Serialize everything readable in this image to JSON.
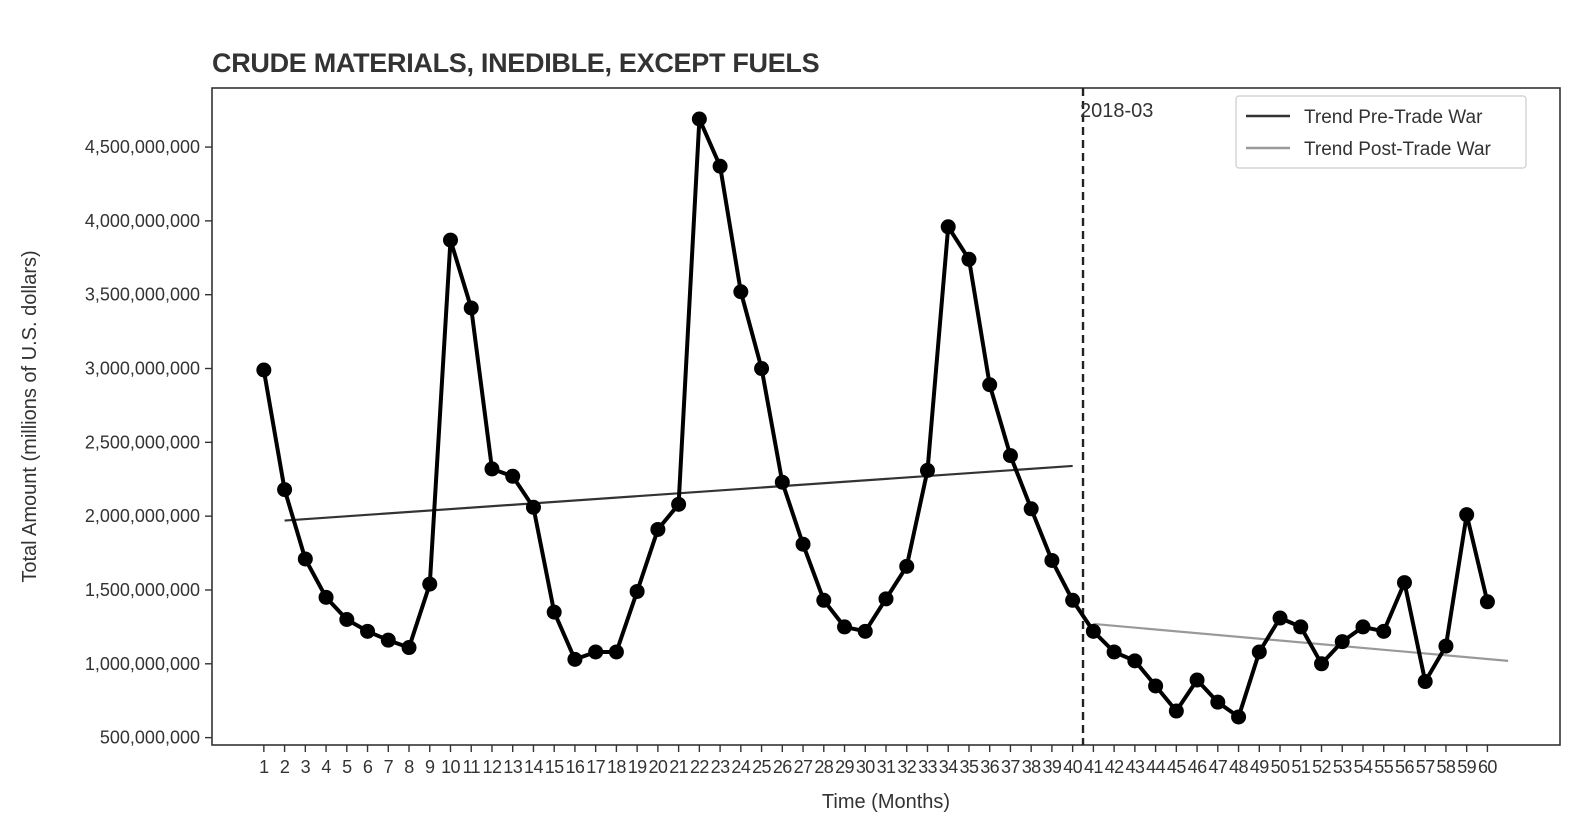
{
  "chart_data": {
    "type": "line",
    "title": "CRUDE MATERIALS, INEDIBLE, EXCEPT FUELS",
    "xlabel": "Time (Months)",
    "ylabel": "Total Amount (millions of U.S. dollars)",
    "xlim": [
      -1.5,
      63.5
    ],
    "ylim": [
      450000000,
      4900000000
    ],
    "yticks": [
      500000000,
      1000000000,
      1500000000,
      2000000000,
      2500000000,
      3000000000,
      3500000000,
      4000000000,
      4500000000
    ],
    "ytick_labels": [
      "500,000,000",
      "1,000,000,000",
      "1,500,000,000",
      "2,000,000,000",
      "2,500,000,000",
      "3,000,000,000",
      "3,500,000,000",
      "4,000,000,000",
      "4,500,000,000"
    ],
    "x": [
      1,
      2,
      3,
      4,
      5,
      6,
      7,
      8,
      9,
      10,
      11,
      12,
      13,
      14,
      15,
      16,
      17,
      18,
      19,
      20,
      21,
      22,
      23,
      24,
      25,
      26,
      27,
      28,
      29,
      30,
      31,
      32,
      33,
      34,
      35,
      36,
      37,
      38,
      39,
      40,
      41,
      42,
      43,
      44,
      45,
      46,
      47,
      48,
      49,
      50,
      51,
      52,
      53,
      54,
      55,
      56,
      57,
      58,
      59,
      60
    ],
    "xtick_labels": [
      "1",
      "2",
      "3",
      "4",
      "5",
      "6",
      "7",
      "8",
      "9",
      "10",
      "11",
      "12",
      "13",
      "14",
      "15",
      "16",
      "17",
      "18",
      "19",
      "20",
      "21",
      "22",
      "23",
      "24",
      "25",
      "26",
      "27",
      "28",
      "29",
      "30",
      "31",
      "32",
      "33",
      "34",
      "35",
      "36",
      "37",
      "38",
      "39",
      "40",
      "41",
      "42",
      "43",
      "44",
      "45",
      "46",
      "47",
      "48",
      "49",
      "50",
      "51",
      "52",
      "53",
      "54",
      "55",
      "56",
      "57",
      "58",
      "59",
      "60"
    ],
    "series": [
      {
        "color": "#000000",
        "values": [
          2990000000,
          2180000000,
          1710000000,
          1450000000,
          1300000000,
          1220000000,
          1160000000,
          1110000000,
          1540000000,
          3870000000,
          3410000000,
          2320000000,
          2270000000,
          2060000000,
          1350000000,
          1030000000,
          1080000000,
          1080000000,
          1490000000,
          1910000000,
          2080000000,
          4690000000,
          4370000000,
          3520000000,
          3000000000,
          2230000000,
          1810000000,
          1430000000,
          1250000000,
          1220000000,
          1440000000,
          1660000000,
          2310000000,
          3960000000,
          3740000000,
          2890000000,
          2410000000,
          2050000000,
          1700000000,
          1430000000,
          1220000000,
          1080000000,
          1020000000,
          850000000,
          680000000,
          890000000,
          740000000,
          640000000,
          1080000000,
          1310000000,
          1250000000,
          1000000000,
          1150000000,
          1250000000,
          1220000000,
          1550000000,
          880000000,
          1120000000,
          2010000000,
          1420000000
        ]
      }
    ],
    "trend_lines": [
      {
        "name": "Trend Pre-Trade War",
        "color": "#333333",
        "x": [
          2,
          40
        ],
        "y": [
          1970000000,
          2340000000
        ]
      },
      {
        "name": "Trend Post-Trade War",
        "color": "#999999",
        "x": [
          41,
          61
        ],
        "y": [
          1270000000,
          1020000000
        ]
      }
    ],
    "vline": {
      "x": 40.5,
      "label": "2018-03",
      "style": "dashed"
    },
    "legend": {
      "placement": "top-right"
    },
    "grid": false
  }
}
